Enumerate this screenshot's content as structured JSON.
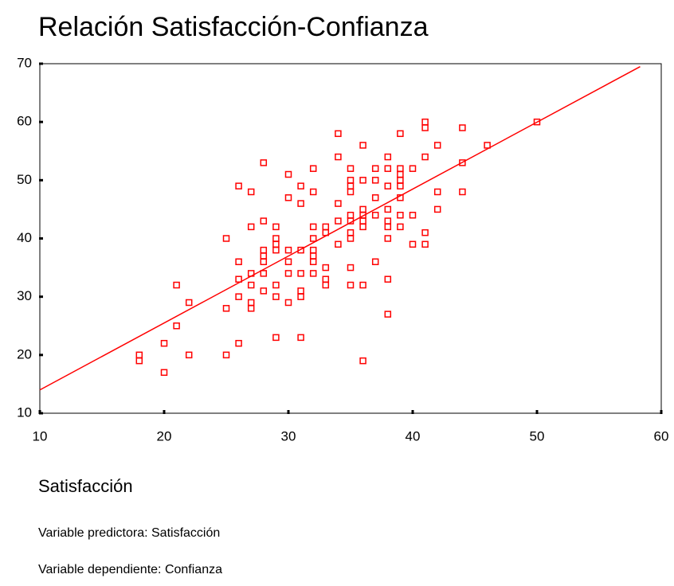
{
  "chart_data": {
    "type": "scatter",
    "title": "Relación Satisfacción-Confianza",
    "x_label": "Satisfacción",
    "notes": [
      "Variable predictora: Satisfacción",
      "Variable dependiente: Confianza"
    ],
    "color": "#ff0000",
    "xlim": [
      10,
      60
    ],
    "xticks": [
      10,
      20,
      30,
      40,
      50,
      60
    ],
    "ylim": [
      10,
      70
    ],
    "yticks": [
      10,
      20,
      30,
      40,
      50,
      60,
      70
    ],
    "x": [
      18,
      18,
      20,
      20,
      21,
      21,
      22,
      22,
      25,
      25,
      25,
      26,
      26,
      26,
      26,
      26,
      27,
      27,
      27,
      27,
      27,
      27,
      28,
      28,
      28,
      28,
      28,
      28,
      28,
      29,
      29,
      29,
      29,
      29,
      29,
      29,
      30,
      30,
      30,
      30,
      30,
      30,
      31,
      31,
      31,
      31,
      31,
      31,
      31,
      32,
      32,
      32,
      32,
      32,
      32,
      32,
      32,
      33,
      33,
      33,
      33,
      33,
      34,
      34,
      34,
      34,
      34,
      35,
      35,
      35,
      35,
      35,
      35,
      35,
      35,
      35,
      35,
      36,
      36,
      36,
      36,
      36,
      36,
      36,
      36,
      37,
      37,
      37,
      37,
      37,
      38,
      38,
      38,
      38,
      38,
      38,
      38,
      38,
      38,
      39,
      39,
      39,
      39,
      39,
      39,
      39,
      39,
      40,
      40,
      40,
      41,
      41,
      41,
      41,
      41,
      42,
      42,
      42,
      44,
      44,
      44,
      46,
      50
    ],
    "values": [
      20,
      19,
      22,
      17,
      32,
      25,
      29,
      20,
      40,
      28,
      20,
      49,
      36,
      33,
      30,
      22,
      48,
      42,
      34,
      32,
      29,
      28,
      53,
      43,
      38,
      37,
      36,
      34,
      31,
      42,
      40,
      39,
      38,
      32,
      30,
      23,
      51,
      47,
      38,
      36,
      34,
      29,
      49,
      46,
      38,
      34,
      31,
      30,
      23,
      52,
      48,
      42,
      40,
      38,
      37,
      36,
      34,
      42,
      41,
      35,
      33,
      32,
      58,
      54,
      46,
      43,
      39,
      52,
      50,
      49,
      48,
      44,
      43,
      41,
      40,
      35,
      32,
      56,
      50,
      45,
      44,
      43,
      42,
      32,
      19,
      52,
      50,
      47,
      44,
      36,
      54,
      52,
      49,
      45,
      43,
      42,
      40,
      33,
      27,
      58,
      52,
      51,
      50,
      49,
      47,
      44,
      42,
      52,
      44,
      39,
      60,
      59,
      54,
      41,
      39,
      56,
      48,
      45,
      59,
      53,
      48,
      56,
      60
    ],
    "regression_line": {
      "x": [
        10,
        58.3
      ],
      "y": [
        14,
        69.5
      ]
    }
  }
}
